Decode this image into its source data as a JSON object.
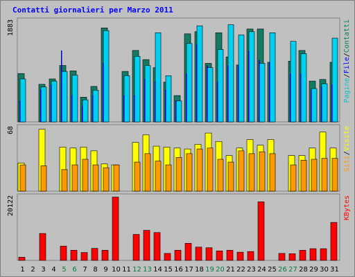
{
  "title": "Contatti giornalieri per Marzo 2011",
  "chart_data": {
    "type": "bar",
    "x": [
      "1",
      "2",
      "3",
      "4",
      "5",
      "6",
      "7",
      "8",
      "9",
      "10",
      "11",
      "12",
      "13",
      "14",
      "15",
      "16",
      "17",
      "18",
      "19",
      "20",
      "21",
      "22",
      "23",
      "24",
      "25",
      "26",
      "27",
      "28",
      "29",
      "30",
      "31"
    ],
    "weekend_days": [
      "5",
      "6",
      "12",
      "13",
      "19",
      "20",
      "26",
      "27"
    ],
    "colors": {
      "title": "#0000ff",
      "background": "#c0c0c0",
      "panel": "#c0c0c0",
      "visits": "#147a64",
      "pages": "#00d0f0",
      "files": "#0000c8",
      "sites": "#ffff00",
      "visite": "#ff9900",
      "kbytes": "#ff0000",
      "weekday_tick": "#000000",
      "weekend_tick": "#008040"
    },
    "panels": [
      {
        "max_label": "1883",
        "ylim": [
          0,
          1883
        ],
        "legend": [
          "Pagine",
          "/",
          "File",
          "/",
          "Contatti"
        ],
        "legend_colors": [
          "#00c8c8",
          "#000000",
          "#0000ff",
          "#000000",
          "#008060"
        ],
        "series": [
          {
            "name": "Contatti",
            "values": [
              900,
              0,
              700,
              800,
              1050,
              950,
              460,
              660,
              1750,
              0,
              940,
              1330,
              1160,
              1010,
              740,
              490,
              1640,
              1680,
              1090,
              1660,
              1210,
              1060,
              1730,
              1730,
              1110,
              0,
              1130,
              1330,
              760,
              790,
              1110
            ]
          },
          {
            "name": "File",
            "values": [
              400,
              0,
              600,
              700,
              1330,
              500,
              300,
              500,
              1100,
              0,
              500,
              500,
              800,
              750,
              600,
              400,
              900,
              1450,
              1050,
              750,
              1050,
              1050,
              1320,
              1150,
              1110,
              0,
              900,
              900,
              600,
              650,
              700
            ]
          },
          {
            "name": "Pagine",
            "values": [
              800,
              0,
              650,
              760,
              940,
              870,
              410,
              590,
              1700,
              0,
              860,
              1220,
              1050,
              1660,
              860,
              390,
              1460,
              1790,
              1010,
              1350,
              1810,
              1620,
              1680,
              1090,
              1660,
              0,
              1500,
              1270,
              620,
              710,
              1560
            ]
          }
        ]
      },
      {
        "max_label": "68",
        "ylim": [
          0,
          68
        ],
        "legend": [
          "Siti",
          "/",
          "Visite"
        ],
        "legend_colors": [
          "#ff9900",
          "#000000",
          "#ffff00"
        ],
        "series": [
          {
            "name": "Visite",
            "values": [
              30,
              0,
              66,
              0,
              47,
              46,
              47,
              43,
              29,
              28,
              0,
              52,
              60,
              48,
              47,
              46,
              45,
              50,
              62,
              53,
              38,
              46,
              55,
              49,
              55,
              0,
              38,
              38,
              46,
              63,
              46
            ]
          },
          {
            "name": "Siti",
            "values": [
              28,
              0,
              27,
              0,
              23,
              28,
              34,
              28,
              25,
              28,
              0,
              31,
              40,
              32,
              28,
              36,
              40,
              45,
              46,
              34,
              31,
              43,
              40,
              42,
              40,
              0,
              28,
              33,
              34,
              35,
              35
            ]
          }
        ]
      },
      {
        "max_label": "20122",
        "ylim": [
          0,
          20122
        ],
        "legend": [
          "KBytes"
        ],
        "legend_colors": [
          "#ff0000"
        ],
        "series": [
          {
            "name": "KBytes",
            "values": [
              1000,
              0,
              8500,
              0,
              4500,
              3200,
              2500,
              3800,
              3200,
              20000,
              0,
              8200,
              9500,
              8800,
              2200,
              3200,
              5400,
              4200,
              4000,
              3000,
              3200,
              2600,
              2800,
              18500,
              0,
              2200,
              2100,
              3200,
              3700,
              3700,
              12000
            ]
          }
        ]
      }
    ]
  }
}
